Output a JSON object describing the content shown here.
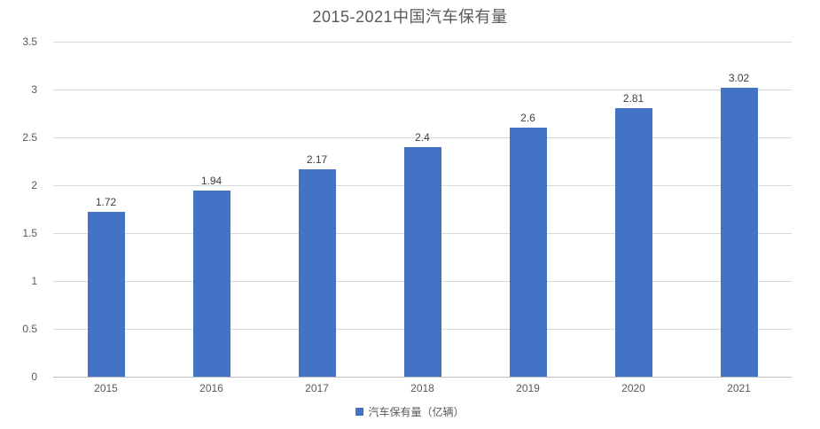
{
  "chart_data": {
    "type": "bar",
    "title": "2015-2021中国汽车保有量",
    "categories": [
      "2015",
      "2016",
      "2017",
      "2018",
      "2019",
      "2020",
      "2021"
    ],
    "values": [
      1.72,
      1.94,
      2.17,
      2.4,
      2.6,
      2.81,
      3.02
    ],
    "value_labels": [
      "1.72",
      "1.94",
      "2.17",
      "2.4",
      "2.6",
      "2.81",
      "3.02"
    ],
    "series_name": "汽车保有量（亿辆）",
    "legend_position": "bottom-center",
    "xlabel": "",
    "ylabel": "",
    "ylim": [
      0,
      3.5
    ],
    "yticks": [
      "0",
      "0.5",
      "1",
      "1.5",
      "2",
      "2.5",
      "3",
      "3.5"
    ],
    "grid": true,
    "colors": {
      "bar": "#4472C4",
      "gridline": "#D9D9D9",
      "axis_line": "#BFBFBF",
      "title_text": "#595959",
      "tick_text": "#595959",
      "data_label_text": "#404040"
    }
  }
}
